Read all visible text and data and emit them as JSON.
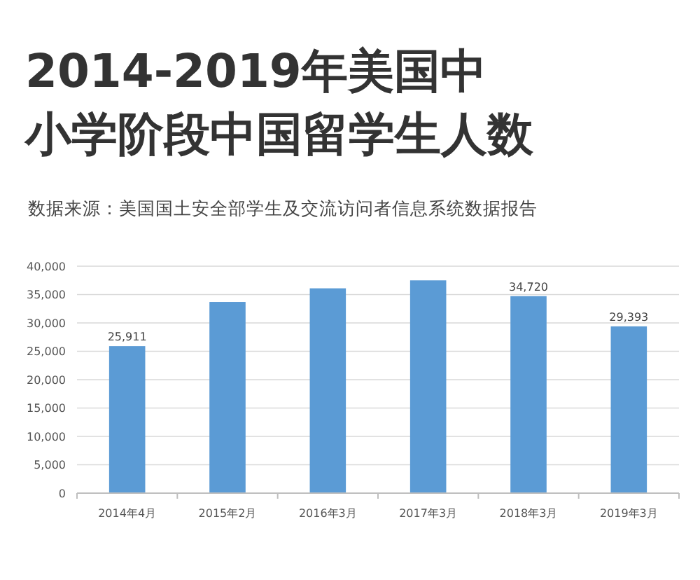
{
  "chart_data": {
    "type": "bar",
    "title": "2014-2019年美国中小学阶段中国留学生人数",
    "annotations": [
      "数据来源：美国国土安全部学生及交流访问者信息系统数据报告"
    ],
    "categories": [
      "2014年4月",
      "2015年2月",
      "2016年3月",
      "2017年3月",
      "2018年3月",
      "2019年3月"
    ],
    "values": [
      25911,
      33700,
      36100,
      37500,
      34720,
      29393
    ],
    "value_labels": [
      "25,911",
      null,
      null,
      null,
      "34,720",
      "29,393"
    ],
    "color": "#5b9bd5",
    "ylim": [
      0,
      40000
    ],
    "yticks": [
      {
        "value": 0,
        "label": "0"
      },
      {
        "value": 5000,
        "label": "5,000"
      },
      {
        "value": 10000,
        "label": "10,000"
      },
      {
        "value": 15000,
        "label": "15,000"
      },
      {
        "value": 20000,
        "label": "20,000"
      },
      {
        "value": 25000,
        "label": "25,000"
      },
      {
        "value": 30000,
        "label": "30,000"
      },
      {
        "value": 35000,
        "label": "35,000"
      },
      {
        "value": 40000,
        "label": "40,000"
      }
    ],
    "grid": "y"
  }
}
